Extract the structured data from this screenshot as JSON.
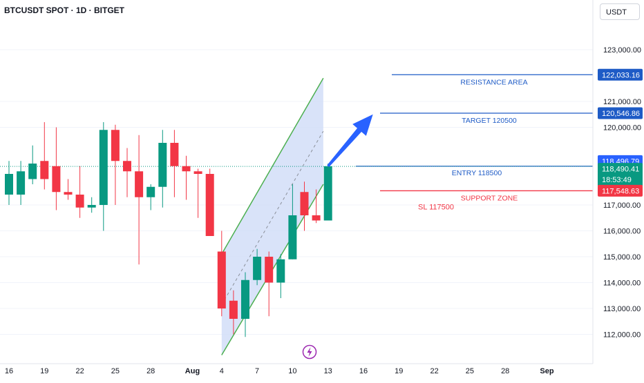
{
  "header": {
    "title": "BTCUSDT SPOT · 1D · BITGET",
    "currency": "USDT"
  },
  "colors": {
    "up": "#089981",
    "down": "#f23645",
    "channel_fill": "#cfdcf8",
    "channel_line": "#4caf50",
    "blue_line": "#1e5bc6",
    "arrow": "#2962ff",
    "support": "#f23645",
    "current_line": "#089981"
  },
  "chart_data": {
    "type": "candlestick",
    "x_tick_labels": [
      "16",
      "19",
      "22",
      "25",
      "28",
      "Aug",
      "4",
      "7",
      "10",
      "13",
      "16",
      "19",
      "22",
      "25",
      "28",
      "Sep"
    ],
    "y_tick_labels": [
      "112,000.00",
      "113,000.00",
      "114,000.00",
      "115,000.00",
      "116,000.00",
      "117,000.00",
      "120,000.00",
      "121,000.00",
      "123,000.00"
    ],
    "candles": [
      {
        "o": 117400,
        "h": 118700,
        "l": 117000,
        "c": 118200
      },
      {
        "o": 117400,
        "h": 118700,
        "l": 117000,
        "c": 118300
      },
      {
        "o": 118000,
        "h": 119300,
        "l": 117800,
        "c": 118600
      },
      {
        "o": 118700,
        "h": 120200,
        "l": 117600,
        "c": 118000
      },
      {
        "o": 118500,
        "h": 120000,
        "l": 116800,
        "c": 117500
      },
      {
        "o": 117500,
        "h": 118000,
        "l": 117200,
        "c": 117400
      },
      {
        "o": 117400,
        "h": 118500,
        "l": 116500,
        "c": 116900
      },
      {
        "o": 116900,
        "h": 117300,
        "l": 116700,
        "c": 117000
      },
      {
        "o": 117000,
        "h": 120200,
        "l": 116000,
        "c": 119900
      },
      {
        "o": 119900,
        "h": 120100,
        "l": 117000,
        "c": 118700
      },
      {
        "o": 118700,
        "h": 119200,
        "l": 117300,
        "c": 118300
      },
      {
        "o": 118300,
        "h": 119700,
        "l": 114700,
        "c": 117300
      },
      {
        "o": 117300,
        "h": 117800,
        "l": 116800,
        "c": 117700
      },
      {
        "o": 117700,
        "h": 119900,
        "l": 116900,
        "c": 119400
      },
      {
        "o": 119400,
        "h": 119900,
        "l": 117300,
        "c": 118500
      },
      {
        "o": 118500,
        "h": 118900,
        "l": 117200,
        "c": 118300
      },
      {
        "o": 118300,
        "h": 118400,
        "l": 116500,
        "c": 118200
      },
      {
        "o": 118200,
        "h": 118400,
        "l": 115800,
        "c": 115800
      },
      {
        "o": 115200,
        "h": 116000,
        "l": 112700,
        "c": 113000
      },
      {
        "o": 113300,
        "h": 113700,
        "l": 112000,
        "c": 112600
      },
      {
        "o": 112600,
        "h": 114400,
        "l": 111900,
        "c": 114100
      },
      {
        "o": 114100,
        "h": 115300,
        "l": 113900,
        "c": 115000
      },
      {
        "o": 115000,
        "h": 115200,
        "l": 112700,
        "c": 114000
      },
      {
        "o": 114000,
        "h": 115100,
        "l": 113400,
        "c": 114900
      },
      {
        "o": 114900,
        "h": 117800,
        "l": 114900,
        "c": 116600
      },
      {
        "o": 117500,
        "h": 117900,
        "l": 116000,
        "c": 116600
      },
      {
        "o": 116600,
        "h": 117600,
        "l": 116300,
        "c": 116400
      },
      {
        "o": 116400,
        "h": 118600,
        "l": 116400,
        "c": 118496
      }
    ],
    "price_labels": [
      {
        "value": 122033.16,
        "text": "122,033.16",
        "kind": "resistance"
      },
      {
        "value": 120546.86,
        "text": "120,546.86",
        "kind": "target"
      },
      {
        "value": 118496.79,
        "text": "118,496.79",
        "kind": "entry"
      },
      {
        "value": 118490.41,
        "text": "118,490.41",
        "sub": "18:53:49",
        "kind": "current"
      },
      {
        "value": 117548.63,
        "text": "117,548.63",
        "kind": "support"
      }
    ],
    "annotations": {
      "resistance": "RESISTANCE AREA",
      "target": "TARGET 120500",
      "entry": "ENTRY 118500",
      "support": "SUPPORT ZONE",
      "stop_loss": "SL 117500"
    },
    "channel": {
      "upper": [
        {
          "day": 18,
          "price": 115100
        },
        {
          "day": 26.6,
          "price": 121900
        }
      ],
      "lower": [
        {
          "day": 18,
          "price": 111200
        },
        {
          "day": 26.6,
          "price": 117800
        }
      ]
    },
    "arrow": {
      "from": {
        "day": 27,
        "price": 118500
      },
      "to": {
        "day": 30.8,
        "price": 120500
      }
    }
  }
}
